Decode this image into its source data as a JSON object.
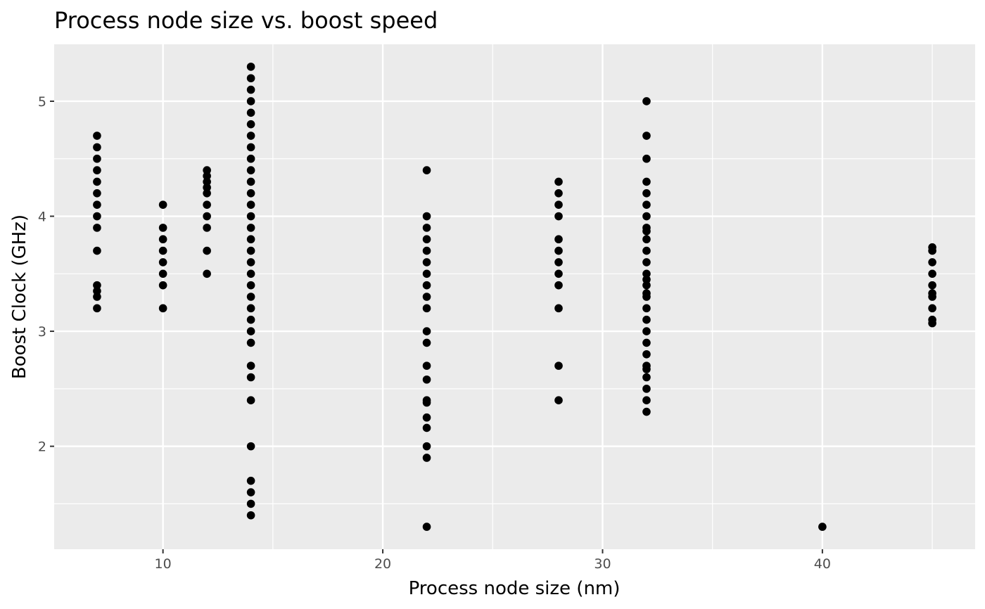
{
  "chart_data": {
    "type": "scatter",
    "title": "Process node size vs. boost speed",
    "xlabel": "Process node size (nm)",
    "ylabel": "Boost Clock (GHz)",
    "xlim": [
      5.05,
      46.95
    ],
    "ylim": [
      1.105,
      5.495
    ],
    "x_ticks": [
      10,
      20,
      30,
      40
    ],
    "y_ticks": [
      2,
      3,
      4,
      5
    ],
    "x_minor": [
      15,
      25,
      35,
      45
    ],
    "y_minor": [
      1.5,
      2.5,
      3.5,
      4.5
    ],
    "grid": true,
    "legend": "none",
    "colors": {
      "panel": "#ebebeb",
      "grid": "#ffffff",
      "point": "#000000",
      "tick": "#333333"
    },
    "points": [
      {
        "x": 7,
        "y": 4.7
      },
      {
        "x": 7,
        "y": 4.6
      },
      {
        "x": 7,
        "y": 4.5
      },
      {
        "x": 7,
        "y": 4.4
      },
      {
        "x": 7,
        "y": 4.3
      },
      {
        "x": 7,
        "y": 4.2
      },
      {
        "x": 7,
        "y": 4.1
      },
      {
        "x": 7,
        "y": 4.0
      },
      {
        "x": 7,
        "y": 3.9
      },
      {
        "x": 7,
        "y": 3.7
      },
      {
        "x": 7,
        "y": 3.4
      },
      {
        "x": 7,
        "y": 3.35
      },
      {
        "x": 7,
        "y": 3.3
      },
      {
        "x": 7,
        "y": 3.2
      },
      {
        "x": 10,
        "y": 4.1
      },
      {
        "x": 10,
        "y": 3.9
      },
      {
        "x": 10,
        "y": 3.8
      },
      {
        "x": 10,
        "y": 3.7
      },
      {
        "x": 10,
        "y": 3.6
      },
      {
        "x": 10,
        "y": 3.5
      },
      {
        "x": 10,
        "y": 3.4
      },
      {
        "x": 10,
        "y": 3.2
      },
      {
        "x": 12,
        "y": 4.4
      },
      {
        "x": 12,
        "y": 4.35
      },
      {
        "x": 12,
        "y": 4.3
      },
      {
        "x": 12,
        "y": 4.25
      },
      {
        "x": 12,
        "y": 4.2
      },
      {
        "x": 12,
        "y": 4.1
      },
      {
        "x": 12,
        "y": 4.0
      },
      {
        "x": 12,
        "y": 3.9
      },
      {
        "x": 12,
        "y": 3.7
      },
      {
        "x": 12,
        "y": 3.5
      },
      {
        "x": 14,
        "y": 5.3
      },
      {
        "x": 14,
        "y": 5.2
      },
      {
        "x": 14,
        "y": 5.1
      },
      {
        "x": 14,
        "y": 5.0
      },
      {
        "x": 14,
        "y": 4.9
      },
      {
        "x": 14,
        "y": 4.8
      },
      {
        "x": 14,
        "y": 4.7
      },
      {
        "x": 14,
        "y": 4.6
      },
      {
        "x": 14,
        "y": 4.5
      },
      {
        "x": 14,
        "y": 4.4
      },
      {
        "x": 14,
        "y": 4.3
      },
      {
        "x": 14,
        "y": 4.2
      },
      {
        "x": 14,
        "y": 4.1
      },
      {
        "x": 14,
        "y": 4.0
      },
      {
        "x": 14,
        "y": 3.9
      },
      {
        "x": 14,
        "y": 3.8
      },
      {
        "x": 14,
        "y": 3.7
      },
      {
        "x": 14,
        "y": 3.6
      },
      {
        "x": 14,
        "y": 3.5
      },
      {
        "x": 14,
        "y": 3.4
      },
      {
        "x": 14,
        "y": 3.3
      },
      {
        "x": 14,
        "y": 3.2
      },
      {
        "x": 14,
        "y": 3.1
      },
      {
        "x": 14,
        "y": 3.0
      },
      {
        "x": 14,
        "y": 2.9
      },
      {
        "x": 14,
        "y": 2.7
      },
      {
        "x": 14,
        "y": 2.6
      },
      {
        "x": 14,
        "y": 2.4
      },
      {
        "x": 14,
        "y": 2.0
      },
      {
        "x": 14,
        "y": 1.7
      },
      {
        "x": 14,
        "y": 1.6
      },
      {
        "x": 14,
        "y": 1.5
      },
      {
        "x": 14,
        "y": 1.4
      },
      {
        "x": 22,
        "y": 4.4
      },
      {
        "x": 22,
        "y": 4.0
      },
      {
        "x": 22,
        "y": 3.9
      },
      {
        "x": 22,
        "y": 3.8
      },
      {
        "x": 22,
        "y": 3.7
      },
      {
        "x": 22,
        "y": 3.6
      },
      {
        "x": 22,
        "y": 3.5
      },
      {
        "x": 22,
        "y": 3.4
      },
      {
        "x": 22,
        "y": 3.3
      },
      {
        "x": 22,
        "y": 3.2
      },
      {
        "x": 22,
        "y": 3.0
      },
      {
        "x": 22,
        "y": 2.9
      },
      {
        "x": 22,
        "y": 2.7
      },
      {
        "x": 22,
        "y": 2.58
      },
      {
        "x": 22,
        "y": 2.4
      },
      {
        "x": 22,
        "y": 2.38
      },
      {
        "x": 22,
        "y": 2.25
      },
      {
        "x": 22,
        "y": 2.16
      },
      {
        "x": 22,
        "y": 2.0
      },
      {
        "x": 22,
        "y": 1.9
      },
      {
        "x": 22,
        "y": 1.3
      },
      {
        "x": 28,
        "y": 4.3
      },
      {
        "x": 28,
        "y": 4.2
      },
      {
        "x": 28,
        "y": 4.1
      },
      {
        "x": 28,
        "y": 4.0
      },
      {
        "x": 28,
        "y": 3.8
      },
      {
        "x": 28,
        "y": 3.7
      },
      {
        "x": 28,
        "y": 3.6
      },
      {
        "x": 28,
        "y": 3.5
      },
      {
        "x": 28,
        "y": 3.4
      },
      {
        "x": 28,
        "y": 3.2
      },
      {
        "x": 28,
        "y": 2.7
      },
      {
        "x": 28,
        "y": 2.4
      },
      {
        "x": 32,
        "y": 5.0
      },
      {
        "x": 32,
        "y": 4.7
      },
      {
        "x": 32,
        "y": 4.5
      },
      {
        "x": 32,
        "y": 4.3
      },
      {
        "x": 32,
        "y": 4.2
      },
      {
        "x": 32,
        "y": 4.1
      },
      {
        "x": 32,
        "y": 4.0
      },
      {
        "x": 32,
        "y": 3.9
      },
      {
        "x": 32,
        "y": 3.87
      },
      {
        "x": 32,
        "y": 3.8
      },
      {
        "x": 32,
        "y": 3.7
      },
      {
        "x": 32,
        "y": 3.6
      },
      {
        "x": 32,
        "y": 3.5
      },
      {
        "x": 32,
        "y": 3.45
      },
      {
        "x": 32,
        "y": 3.4
      },
      {
        "x": 32,
        "y": 3.33
      },
      {
        "x": 32,
        "y": 3.3
      },
      {
        "x": 32,
        "y": 3.2
      },
      {
        "x": 32,
        "y": 3.1
      },
      {
        "x": 32,
        "y": 3.0
      },
      {
        "x": 32,
        "y": 2.9
      },
      {
        "x": 32,
        "y": 2.8
      },
      {
        "x": 32,
        "y": 2.7
      },
      {
        "x": 32,
        "y": 2.67
      },
      {
        "x": 32,
        "y": 2.6
      },
      {
        "x": 32,
        "y": 2.5
      },
      {
        "x": 32,
        "y": 2.4
      },
      {
        "x": 32,
        "y": 2.3
      },
      {
        "x": 40,
        "y": 1.3
      },
      {
        "x": 45,
        "y": 3.73
      },
      {
        "x": 45,
        "y": 3.7
      },
      {
        "x": 45,
        "y": 3.6
      },
      {
        "x": 45,
        "y": 3.5
      },
      {
        "x": 45,
        "y": 3.4
      },
      {
        "x": 45,
        "y": 3.33
      },
      {
        "x": 45,
        "y": 3.3
      },
      {
        "x": 45,
        "y": 3.2
      },
      {
        "x": 45,
        "y": 3.1
      },
      {
        "x": 45,
        "y": 3.07
      }
    ]
  }
}
